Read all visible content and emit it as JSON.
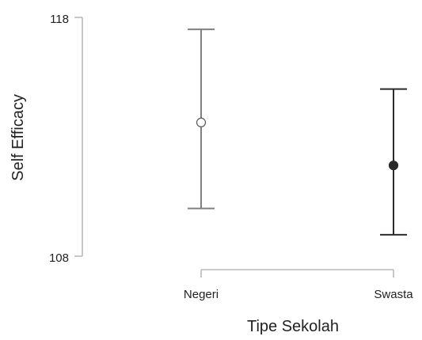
{
  "chart_data": {
    "type": "scatter",
    "subtype": "point-with-error-bars",
    "xlabel": "Tipe Sekolah",
    "ylabel": "Self Efficacy",
    "categories": [
      "Negeri",
      "Swasta"
    ],
    "ylim": [
      108,
      118
    ],
    "y_ticks": [
      "118",
      "108"
    ],
    "points": [
      {
        "category": "Negeri",
        "mean": 113.6,
        "lower": 110.0,
        "upper": 117.5,
        "marker": "open-circle"
      },
      {
        "category": "Swasta",
        "mean": 111.8,
        "lower": 108.9,
        "upper": 115.0,
        "marker": "filled-circle"
      }
    ],
    "grid": false,
    "legend": "none",
    "colors": {
      "negeri": "#808080",
      "swasta": "#2a2a2a",
      "axis": "#aaaaaa"
    }
  }
}
